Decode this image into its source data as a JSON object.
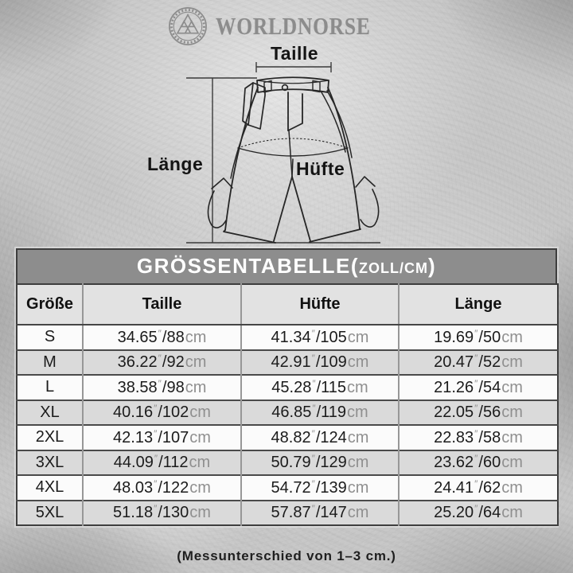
{
  "brand": {
    "name": "WORLDNORSE",
    "logo_icon": "valknut-ring-icon",
    "color": "#8c8c8c"
  },
  "diagram": {
    "labels": {
      "taille": "Taille",
      "huefte": "Hüfte",
      "laenge": "Länge"
    },
    "line_color": "#262626"
  },
  "table": {
    "title_main": "GRÖSSENTABELLE(",
    "title_unit": "ZOLL/CM",
    "title_close": ")",
    "title_bg": "#8d8d8d",
    "header_bg": "#e2e2e2",
    "alt_row_bg": "#dadada",
    "columns": [
      "Größe",
      "Taille",
      "Hüfte",
      "Länge"
    ],
    "units": {
      "inch_mark": "″",
      "separator": "/",
      "cm": "cm"
    },
    "rows": [
      {
        "size": "S",
        "taille_in": "34.65",
        "taille_cm": "88",
        "huefte_in": "41.34",
        "huefte_cm": "105",
        "laenge_in": "19.69",
        "laenge_cm": "50"
      },
      {
        "size": "M",
        "taille_in": "36.22",
        "taille_cm": "92",
        "huefte_in": "42.91",
        "huefte_cm": "109",
        "laenge_in": "20.47",
        "laenge_cm": "52"
      },
      {
        "size": "L",
        "taille_in": "38.58",
        "taille_cm": "98",
        "huefte_in": "45.28",
        "huefte_cm": "115",
        "laenge_in": "21.26",
        "laenge_cm": "54"
      },
      {
        "size": "XL",
        "taille_in": "40.16",
        "taille_cm": "102",
        "huefte_in": "46.85",
        "huefte_cm": "119",
        "laenge_in": "22.05",
        "laenge_cm": "56"
      },
      {
        "size": "2XL",
        "taille_in": "42.13",
        "taille_cm": "107",
        "huefte_in": "48.82",
        "huefte_cm": "124",
        "laenge_in": "22.83",
        "laenge_cm": "58"
      },
      {
        "size": "3XL",
        "taille_in": "44.09",
        "taille_cm": "112",
        "huefte_in": "50.79",
        "huefte_cm": "129",
        "laenge_in": "23.62",
        "laenge_cm": "60"
      },
      {
        "size": "4XL",
        "taille_in": "48.03",
        "taille_cm": "122",
        "huefte_in": "54.72",
        "huefte_cm": "139",
        "laenge_in": "24.41",
        "laenge_cm": "62"
      },
      {
        "size": "5XL",
        "taille_in": "51.18",
        "taille_cm": "130",
        "huefte_in": "57.87",
        "huefte_cm": "147",
        "laenge_in": "25.20",
        "laenge_cm": "64"
      }
    ]
  },
  "footnote": "(Messunterschied von 1–3 cm.)"
}
